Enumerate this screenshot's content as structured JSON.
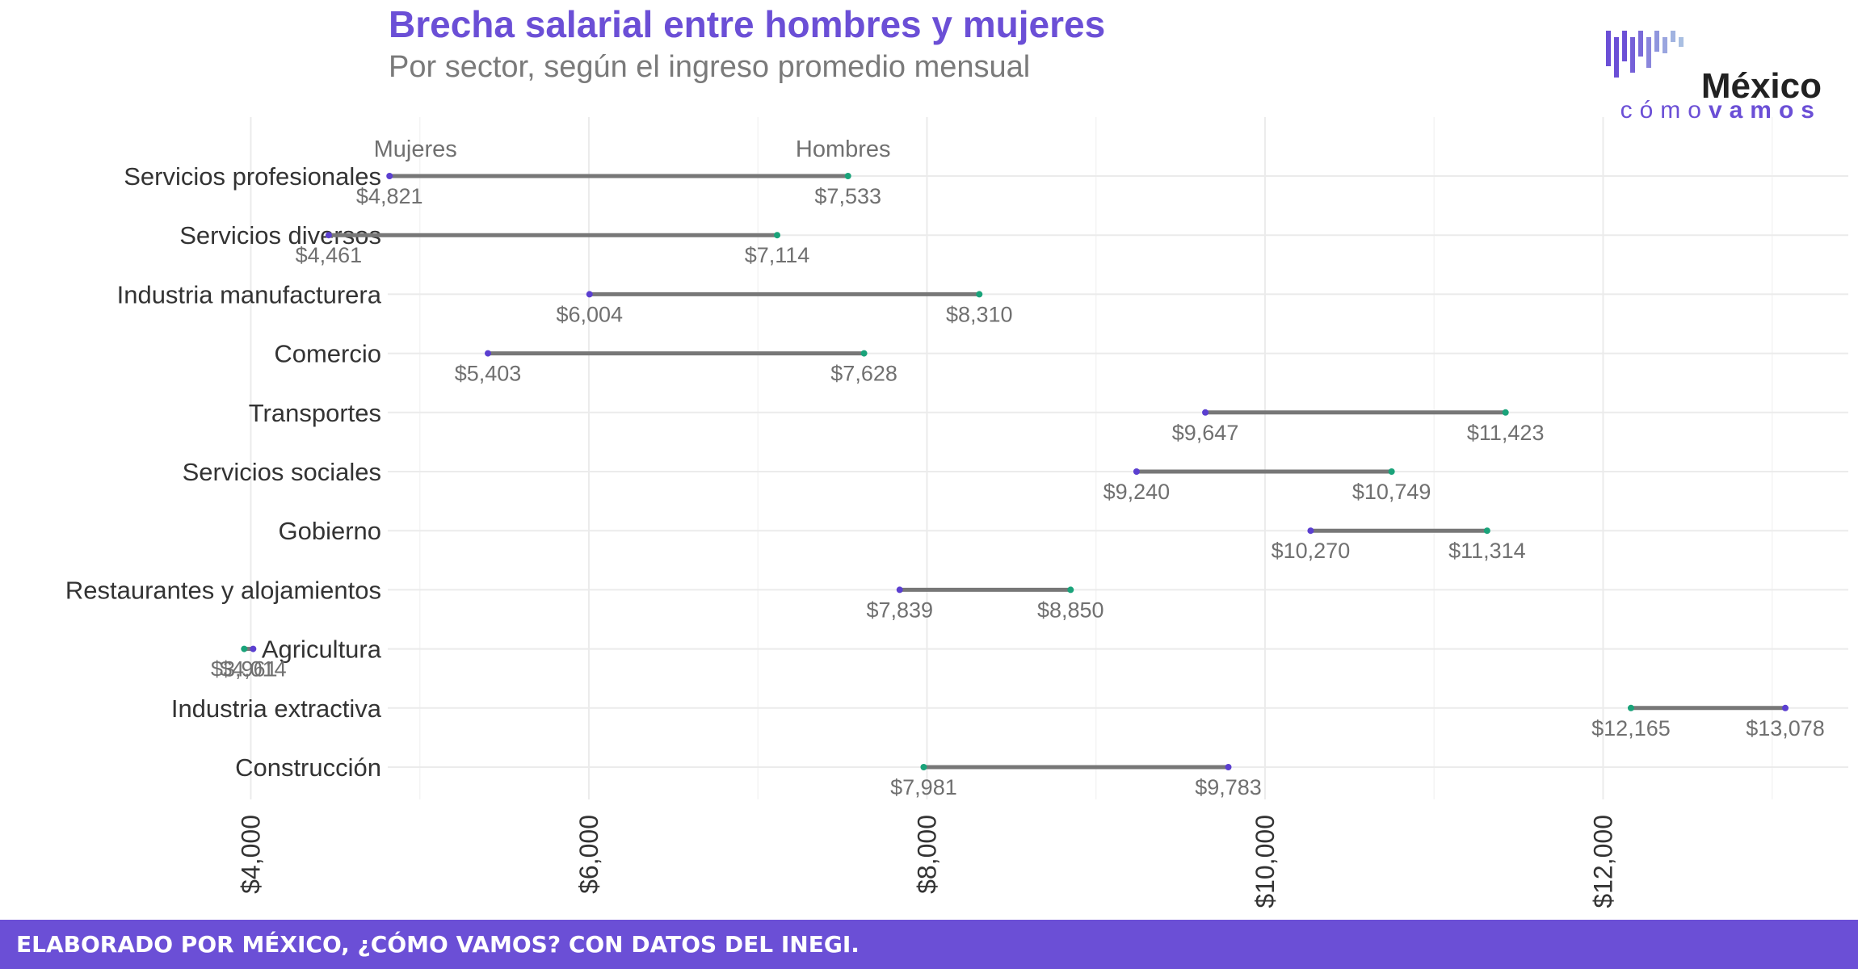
{
  "header": {
    "title": "Brecha salarial entre hombres y mujeres",
    "subtitle": "Por sector, según el ingreso promedio mensual"
  },
  "logo": {
    "main": "México",
    "sub_light": "cómo",
    "sub_bold": "vamos"
  },
  "footer": {
    "text": "ELABORADO POR MÉXICO, ¿CÓMO VAMOS? CON DATOS DEL INEGI."
  },
  "colors": {
    "accent": "#6b4fd6",
    "women": "#5b3fd0",
    "men": "#1aa37a",
    "segment": "#777777",
    "grid": "#ebebeb"
  },
  "chart_data": {
    "type": "dumbbell",
    "title": "Brecha salarial entre hombres y mujeres",
    "subtitle": "Por sector, según el ingreso promedio mensual",
    "legend": [
      "Mujeres",
      "Hombres"
    ],
    "categories": [
      "Servicios profesionales",
      "Servicios diversos",
      "Industria manufacturera",
      "Comercio",
      "Transportes",
      "Servicios sociales",
      "Gobierno",
      "Restaurantes y alojamientos",
      "Agricultura",
      "Industria extractiva",
      "Construcción"
    ],
    "series": [
      {
        "name": "Mujeres",
        "values": [
          4821,
          4461,
          6004,
          5403,
          9647,
          9240,
          10270,
          7839,
          4014,
          13078,
          9783
        ]
      },
      {
        "name": "Hombres",
        "values": [
          7533,
          7114,
          8310,
          7628,
          11423,
          10749,
          11314,
          8850,
          3961,
          12165,
          7981
        ]
      }
    ],
    "value_labels": [
      [
        "$4,821",
        "$7,533"
      ],
      [
        "$4,461",
        "$7,114"
      ],
      [
        "$6,004",
        "$8,310"
      ],
      [
        "$5,403",
        "$7,628"
      ],
      [
        "$9,647",
        "$11,423"
      ],
      [
        "$9,240",
        "$10,749"
      ],
      [
        "$10,270",
        "$11,314"
      ],
      [
        "$7,839",
        "$8,850"
      ],
      [
        "$4,014",
        "$3,961"
      ],
      [
        "$13,078",
        "$12,165"
      ],
      [
        "$9,783",
        "$7,981"
      ]
    ],
    "x_ticks": [
      4000,
      6000,
      8000,
      10000,
      12000
    ],
    "x_tick_labels": [
      "$4,000",
      "$6,000",
      "$8,000",
      "$10,000",
      "$12,000"
    ],
    "xlim": [
      3500,
      13500
    ],
    "grid": true
  }
}
